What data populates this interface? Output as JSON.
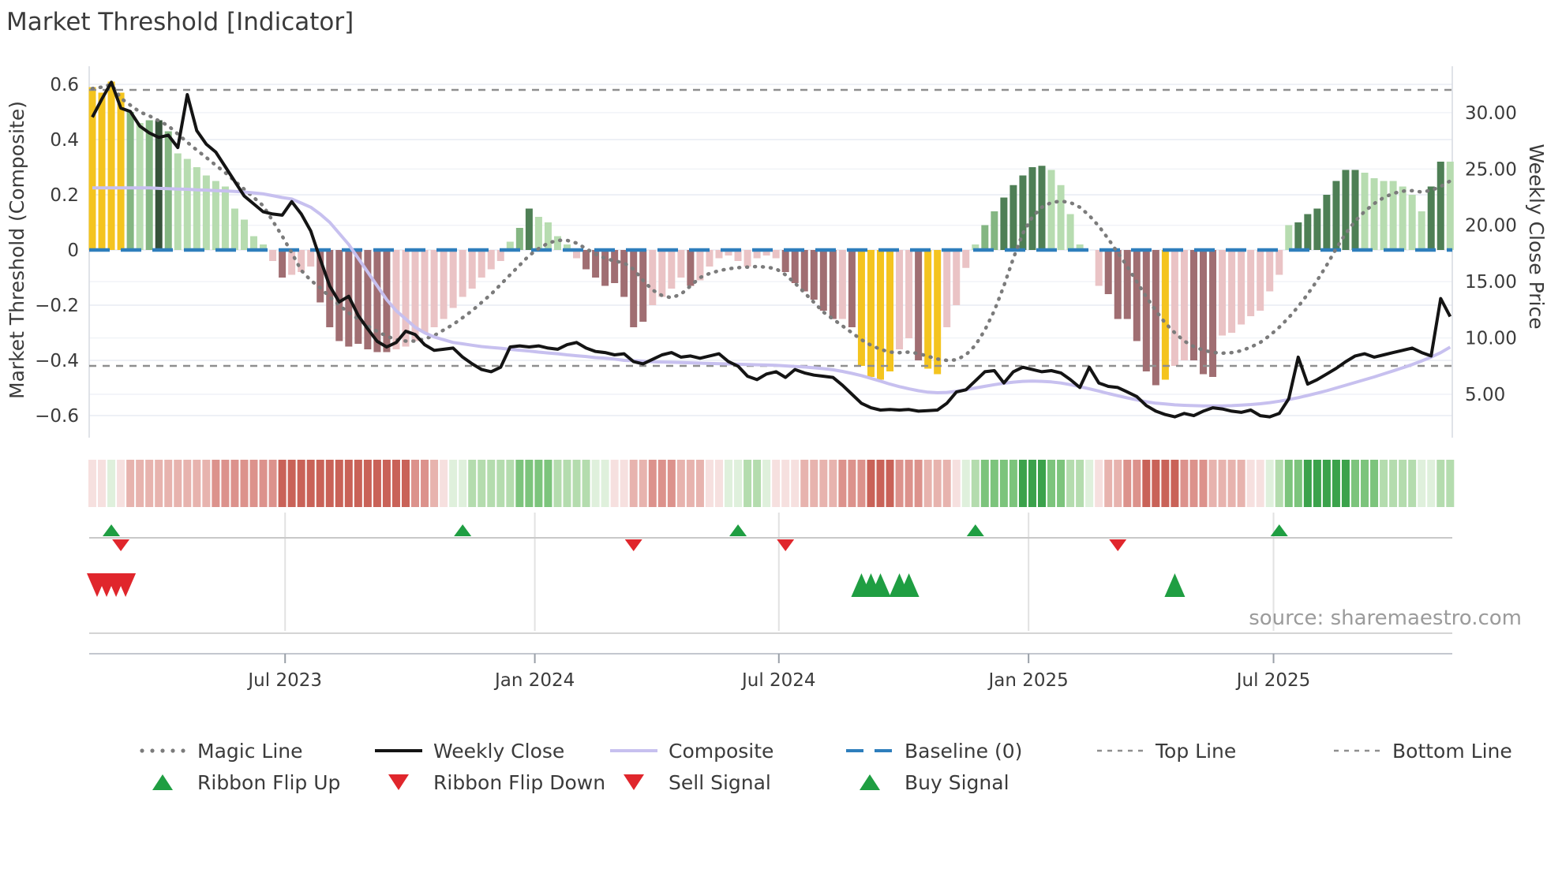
{
  "title": "Market Threshold [Indicator]",
  "source": "source: sharemaestro.com",
  "legend": {
    "row1": [
      {
        "label": "Magic Line",
        "swatch": "dotted-gray"
      },
      {
        "label": "Weekly Close",
        "swatch": "solid-black"
      },
      {
        "label": "Composite",
        "swatch": "solid-lavender"
      },
      {
        "label": "Baseline (0)",
        "swatch": "dashed-blue"
      },
      {
        "label": "Top Line",
        "swatch": "dashed-gray"
      },
      {
        "label": "Bottom Line",
        "swatch": "dashed-gray"
      }
    ],
    "row2": [
      {
        "label": "Ribbon Flip Up",
        "swatch": "tri-up-green"
      },
      {
        "label": "Ribbon Flip Down",
        "swatch": "tri-down-red"
      },
      {
        "label": "Sell Signal",
        "swatch": "tri-down-red"
      },
      {
        "label": "Buy Signal",
        "swatch": "tri-up-green"
      }
    ]
  },
  "chart_data": {
    "type": "bar",
    "title": "Market Threshold [Indicator]",
    "x_axis": {
      "tick_labels": [
        "Jul 2023",
        "Jan 2024",
        "Jul 2024",
        "Jan 2025",
        "Jul 2025"
      ],
      "tick_weeks": [
        20.3,
        46.6,
        72.3,
        98.6,
        124.4
      ],
      "weeks_total": 144
    },
    "left_axis": {
      "title": "Market Threshold (Composite)",
      "ticks": [
        0.6,
        0.4,
        0.2,
        0,
        -0.2,
        -0.4,
        -0.6
      ],
      "tick_labels": [
        "0.6",
        "0.4",
        "0.2",
        "0",
        "−0.2",
        "−0.4",
        "−0.6"
      ],
      "range": [
        -0.66,
        0.665
      ]
    },
    "right_axis": {
      "title": "Weekly Close Price",
      "ticks": [
        30,
        25,
        20,
        15,
        10,
        5
      ],
      "tick_labels": [
        "30.00",
        "25.00",
        "20.00",
        "15.00",
        "10.00",
        "5.00"
      ],
      "range": [
        1.5,
        33.0
      ]
    },
    "reference_lines": {
      "baseline": 0,
      "top_line": 0.58,
      "bottom_line": -0.42
    },
    "bars": {
      "values": [
        0.59,
        0.57,
        0.61,
        0.57,
        0.5,
        0.46,
        0.47,
        0.47,
        0.43,
        0.35,
        0.33,
        0.3,
        0.27,
        0.25,
        0.23,
        0.15,
        0.11,
        0.05,
        0.02,
        -0.04,
        -0.1,
        -0.09,
        -0.08,
        -0.06,
        -0.19,
        -0.28,
        -0.33,
        -0.35,
        -0.34,
        -0.36,
        -0.37,
        -0.37,
        -0.36,
        -0.35,
        -0.33,
        -0.3,
        -0.28,
        -0.25,
        -0.21,
        -0.17,
        -0.14,
        -0.1,
        -0.07,
        -0.04,
        0.03,
        0.08,
        0.15,
        0.12,
        0.1,
        0.05,
        0.02,
        -0.03,
        -0.07,
        -0.1,
        -0.13,
        -0.12,
        -0.17,
        -0.28,
        -0.26,
        -0.2,
        -0.17,
        -0.14,
        -0.1,
        -0.13,
        -0.11,
        -0.06,
        -0.03,
        -0.02,
        -0.04,
        -0.06,
        -0.03,
        -0.02,
        -0.03,
        -0.08,
        -0.12,
        -0.15,
        -0.18,
        -0.22,
        -0.25,
        -0.25,
        -0.28,
        -0.42,
        -0.46,
        -0.47,
        -0.44,
        -0.36,
        -0.32,
        -0.4,
        -0.43,
        -0.45,
        -0.28,
        -0.2,
        -0.065,
        0.02,
        0.09,
        0.14,
        0.19,
        0.235,
        0.27,
        0.3,
        0.305,
        0.29,
        0.235,
        0.13,
        0.02,
        null,
        -0.13,
        -0.16,
        -0.25,
        -0.25,
        -0.33,
        -0.44,
        -0.49,
        -0.47,
        -0.42,
        -0.4,
        -0.4,
        -0.45,
        -0.46,
        -0.31,
        -0.3,
        -0.27,
        -0.24,
        -0.22,
        -0.15,
        -0.09,
        0.09,
        0.1,
        0.13,
        0.15,
        0.2,
        0.25,
        0.29,
        0.29,
        0.28,
        0.26,
        0.25,
        0.25,
        0.23,
        0.2,
        0.14,
        0.23,
        0.32,
        0.32
      ],
      "shades": [
        "Y",
        "Y",
        "Y",
        "Y",
        "G2",
        "G1",
        "G2",
        "G4",
        "G2",
        "G1",
        "G1",
        "G1",
        "G1",
        "G1",
        "G1",
        "G1",
        "G1",
        "G1",
        "G1",
        "P",
        "M",
        "P",
        "P",
        "P",
        "M",
        "M",
        "M",
        "M",
        "M",
        "M",
        "M",
        "M",
        "P",
        "P",
        "P",
        "P",
        "P",
        "P",
        "P",
        "P",
        "P",
        "P",
        "P",
        "P",
        "G1",
        "G2",
        "G3",
        "G1",
        "G1",
        "G1",
        "G1",
        "P",
        "M",
        "M",
        "M",
        "M",
        "M",
        "M",
        "M",
        "P",
        "P",
        "P",
        "P",
        "M",
        "P",
        "P",
        "P",
        "P",
        "P",
        "P",
        "P",
        "P",
        "P",
        "M",
        "M",
        "M",
        "M",
        "M",
        "M",
        "P",
        "M",
        "Y",
        "Y",
        "Y",
        "Y",
        "P",
        "P",
        "M",
        "Y",
        "Y",
        "P",
        "P",
        "P",
        "G1",
        "G2",
        "G2",
        "G3",
        "G3",
        "G3",
        "G3",
        "G3",
        "G1",
        "G1",
        "G1",
        "G1",
        "P",
        "P",
        "M",
        "M",
        "M",
        "M",
        "M",
        "M",
        "Y",
        "P",
        "P",
        "M",
        "M",
        "M",
        "P",
        "P",
        "P",
        "P",
        "P",
        "P",
        "P",
        "G1",
        "G3",
        "G3",
        "G3",
        "G3",
        "G3",
        "G3",
        "G3",
        "G1",
        "G1",
        "G1",
        "G1",
        "G1",
        "G1",
        "G1",
        "G3",
        "G3",
        "G1"
      ]
    },
    "ribbon": [
      -1,
      -1,
      1,
      -1,
      -2,
      -2,
      -2,
      -2,
      -2,
      -2,
      -2,
      -2,
      -2,
      -3,
      -3,
      -3,
      -3,
      -3,
      -3,
      -3,
      -4,
      -4,
      -4,
      -4,
      -4,
      -4,
      -4,
      -4,
      -4,
      -4,
      -4,
      -4,
      -4,
      -4,
      -3,
      -3,
      -2,
      -1,
      1,
      1,
      2,
      2,
      2,
      2,
      2,
      3,
      3,
      3,
      3,
      2,
      2,
      2,
      2,
      1,
      1,
      -1,
      -1,
      -2,
      -2,
      -3,
      -3,
      -3,
      -2,
      -2,
      -2,
      -1,
      -1,
      1,
      1,
      2,
      2,
      1,
      -1,
      -1,
      -1,
      -2,
      -2,
      -2,
      -2,
      -3,
      -3,
      -3,
      -4,
      -4,
      -4,
      -3,
      -3,
      -3,
      -2,
      -2,
      -2,
      -1,
      1,
      2,
      3,
      3,
      3,
      3,
      4,
      4,
      4,
      3,
      3,
      2,
      2,
      1,
      -1,
      -2,
      -2,
      -3,
      -3,
      -4,
      -4,
      -4,
      -4,
      -3,
      -3,
      -3,
      -2,
      -2,
      -2,
      -2,
      -1,
      -1,
      1,
      2,
      3,
      3,
      4,
      4,
      4,
      4,
      4,
      3,
      3,
      3,
      2,
      2,
      2,
      2,
      1,
      1,
      2,
      2
    ],
    "series": {
      "weekly_close": [
        29.6,
        31.2,
        32.7,
        30.4,
        30.1,
        28.8,
        28.2,
        27.8,
        28.0,
        26.9,
        31.6,
        28.4,
        27.2,
        26.5,
        25.2,
        23.9,
        22.6,
        21.9,
        21.2,
        21.0,
        20.9,
        22.1,
        21.0,
        19.5,
        17.0,
        14.6,
        13.2,
        13.7,
        12.0,
        10.8,
        9.7,
        9.2,
        9.6,
        10.6,
        10.3,
        9.4,
        8.9,
        9.0,
        9.1,
        8.3,
        7.7,
        7.2,
        7.0,
        7.4,
        9.2,
        9.3,
        9.2,
        9.3,
        9.1,
        9.0,
        9.4,
        9.6,
        9.1,
        8.8,
        8.7,
        8.5,
        8.6,
        7.9,
        7.7,
        8.1,
        8.5,
        8.7,
        8.3,
        8.4,
        8.2,
        8.4,
        8.6,
        7.9,
        7.5,
        6.6,
        6.3,
        6.8,
        7.0,
        6.5,
        7.2,
        6.9,
        6.7,
        6.6,
        6.5,
        5.8,
        5.0,
        4.2,
        3.8,
        3.6,
        3.65,
        3.6,
        3.65,
        3.5,
        3.55,
        3.6,
        4.2,
        5.2,
        5.4,
        6.2,
        7.0,
        7.1,
        6.0,
        7.0,
        7.4,
        7.2,
        7.0,
        7.1,
        6.9,
        6.3,
        5.6,
        7.4,
        6.0,
        5.7,
        5.6,
        5.2,
        4.8,
        4.0,
        3.5,
        3.2,
        3.0,
        3.3,
        3.1,
        3.5,
        3.8,
        3.7,
        3.5,
        3.4,
        3.6,
        3.1,
        3.0,
        3.3,
        4.6,
        8.3,
        5.9,
        6.3,
        6.8,
        7.3,
        7.9,
        8.4,
        8.6,
        8.3,
        8.5,
        8.7,
        8.9,
        9.1,
        8.7,
        8.4,
        13.5,
        11.9
      ],
      "composite": [
        0.225,
        0.225,
        0.225,
        0.225,
        0.225,
        0.225,
        0.225,
        0.223,
        0.222,
        0.221,
        0.22,
        0.218,
        0.217,
        0.215,
        0.214,
        0.212,
        0.21,
        0.207,
        0.203,
        0.197,
        0.19,
        0.185,
        0.17,
        0.155,
        0.13,
        0.1,
        0.06,
        0.02,
        -0.03,
        -0.08,
        -0.13,
        -0.18,
        -0.22,
        -0.25,
        -0.28,
        -0.3,
        -0.315,
        -0.325,
        -0.335,
        -0.34,
        -0.345,
        -0.35,
        -0.353,
        -0.356,
        -0.36,
        -0.363,
        -0.366,
        -0.37,
        -0.373,
        -0.376,
        -0.38,
        -0.383,
        -0.386,
        -0.39,
        -0.392,
        -0.395,
        -0.4,
        -0.401,
        -0.403,
        -0.405,
        -0.406,
        -0.407,
        -0.408,
        -0.409,
        -0.41,
        -0.411,
        -0.412,
        -0.413,
        -0.414,
        -0.415,
        -0.416,
        -0.417,
        -0.418,
        -0.42,
        -0.422,
        -0.424,
        -0.427,
        -0.43,
        -0.434,
        -0.44,
        -0.447,
        -0.455,
        -0.465,
        -0.475,
        -0.486,
        -0.495,
        -0.503,
        -0.51,
        -0.515,
        -0.517,
        -0.516,
        -0.512,
        -0.506,
        -0.5,
        -0.494,
        -0.488,
        -0.483,
        -0.479,
        -0.476,
        -0.475,
        -0.476,
        -0.478,
        -0.482,
        -0.488,
        -0.495,
        -0.503,
        -0.511,
        -0.52,
        -0.528,
        -0.536,
        -0.543,
        -0.55,
        -0.555,
        -0.558,
        -0.561,
        -0.563,
        -0.564,
        -0.565,
        -0.565,
        -0.565,
        -0.564,
        -0.562,
        -0.56,
        -0.557,
        -0.553,
        -0.548,
        -0.542,
        -0.535,
        -0.527,
        -0.519,
        -0.51,
        -0.5,
        -0.49,
        -0.48,
        -0.47,
        -0.46,
        -0.449,
        -0.438,
        -0.427,
        -0.415,
        -0.402,
        -0.388,
        -0.372,
        -0.352
      ],
      "magic_line": [
        0.585,
        0.59,
        0.6,
        0.55,
        0.525,
        0.5,
        0.486,
        0.468,
        0.45,
        0.42,
        0.39,
        0.362,
        0.335,
        0.307,
        0.28,
        0.25,
        0.22,
        0.19,
        0.16,
        0.105,
        0.05,
        -0.01,
        -0.074,
        -0.11,
        -0.137,
        -0.17,
        -0.2,
        -0.228,
        -0.25,
        -0.275,
        -0.295,
        -0.312,
        -0.325,
        -0.33,
        -0.33,
        -0.322,
        -0.31,
        -0.29,
        -0.27,
        -0.245,
        -0.22,
        -0.19,
        -0.16,
        -0.125,
        -0.09,
        -0.055,
        -0.02,
        0.005,
        0.025,
        0.035,
        0.035,
        0.025,
        0.005,
        -0.015,
        -0.03,
        -0.04,
        -0.047,
        -0.07,
        -0.11,
        -0.145,
        -0.165,
        -0.173,
        -0.16,
        -0.13,
        -0.1,
        -0.085,
        -0.075,
        -0.068,
        -0.064,
        -0.062,
        -0.06,
        -0.062,
        -0.068,
        -0.09,
        -0.12,
        -0.155,
        -0.19,
        -0.225,
        -0.25,
        -0.275,
        -0.3,
        -0.325,
        -0.345,
        -0.36,
        -0.37,
        -0.372,
        -0.37,
        -0.375,
        -0.385,
        -0.395,
        -0.4,
        -0.398,
        -0.38,
        -0.345,
        -0.29,
        -0.22,
        -0.13,
        -0.03,
        0.06,
        0.12,
        0.155,
        0.172,
        0.177,
        0.172,
        0.155,
        0.125,
        0.086,
        0.04,
        -0.01,
        -0.06,
        -0.115,
        -0.17,
        -0.22,
        -0.265,
        -0.3,
        -0.33,
        -0.35,
        -0.363,
        -0.371,
        -0.374,
        -0.372,
        -0.365,
        -0.352,
        -0.335,
        -0.31,
        -0.28,
        -0.245,
        -0.205,
        -0.16,
        -0.11,
        -0.055,
        0.005,
        0.06,
        0.105,
        0.14,
        0.168,
        0.19,
        0.205,
        0.213,
        0.215,
        0.21,
        0.216,
        0.23,
        0.25
      ]
    },
    "signals": {
      "ribbon_flip_up_weeks": [
        2,
        39,
        68,
        93,
        125
      ],
      "ribbon_flip_down_weeks": [
        3,
        57,
        73,
        108
      ],
      "sell_weeks": [
        0,
        1,
        2,
        3
      ],
      "buy_weeks": [
        81,
        82,
        83,
        85,
        86,
        114
      ]
    },
    "colors": {
      "bar_yellow": "#f4c41f",
      "bar_green_light": "#b7dcb0",
      "bar_green_mid": "#84b682",
      "bar_green_dark": "#4e7f55",
      "bar_green_darkest": "#355239",
      "bar_pink": "#eac3c5",
      "bar_maroon": "#a06e72",
      "ribbon_red4": "#c96258",
      "ribbon_red3": "#dc928c",
      "ribbon_red2": "#e7b3ae",
      "ribbon_red1": "#f6e0df",
      "ribbon_green1": "#dff0dc",
      "ribbon_green2": "#b4dcae",
      "ribbon_green3": "#7cc47c",
      "ribbon_green4": "#3ba24b",
      "baseline_blue": "#2e7ebc",
      "composite_lavender": "#c7c0ef",
      "magic_gray": "#7b7b7b",
      "weekly_close_black": "#141414",
      "ref_dash_gray": "#8f8f8f",
      "signal_green": "#1f9e42",
      "signal_red": "#e0262c",
      "grid": "#e9ecf3",
      "text_dark": "#3b3b3b",
      "text_muted": "#9b9b9b"
    },
    "legend_position": "bottom",
    "grid": true
  }
}
